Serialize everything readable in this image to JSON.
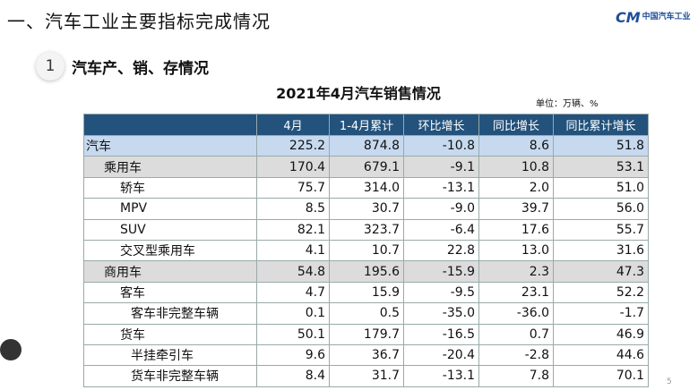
{
  "header": {
    "title": "一、汽车工业主要指标完成情况",
    "logo_mark": "CM",
    "logo_text": "中国汽车工业"
  },
  "section": {
    "number": "1",
    "title": "汽车产、销、存情况"
  },
  "table": {
    "title": "2021年4月汽车销售情况",
    "unit": "单位：万辆、%",
    "columns": [
      "4月",
      "1-4月累计",
      "环比增长",
      "同比增长",
      "同比累计增长"
    ],
    "rows": [
      {
        "label": "汽车",
        "cells": [
          "225.2",
          "874.8",
          "-10.8",
          "8.6",
          "51.8"
        ]
      },
      {
        "label": "乘用车",
        "cells": [
          "170.4",
          "679.1",
          "-9.1",
          "10.8",
          "53.1"
        ]
      },
      {
        "label": "轿车",
        "cells": [
          "75.7",
          "314.0",
          "-13.1",
          "2.0",
          "51.0"
        ]
      },
      {
        "label": "MPV",
        "cells": [
          "8.5",
          "30.7",
          "-9.0",
          "39.7",
          "56.0"
        ]
      },
      {
        "label": "SUV",
        "cells": [
          "82.1",
          "323.7",
          "-6.4",
          "17.6",
          "55.7"
        ]
      },
      {
        "label": "交叉型乘用车",
        "cells": [
          "4.1",
          "10.7",
          "22.8",
          "13.0",
          "31.6"
        ]
      },
      {
        "label": "商用车",
        "cells": [
          "54.8",
          "195.6",
          "-15.9",
          "2.3",
          "47.3"
        ]
      },
      {
        "label": "客车",
        "cells": [
          "4.7",
          "15.9",
          "-9.5",
          "23.1",
          "52.2"
        ]
      },
      {
        "label": "客车非完整车辆",
        "cells": [
          "0.1",
          "0.5",
          "-35.0",
          "-36.0",
          "-1.7"
        ]
      },
      {
        "label": "货车",
        "cells": [
          "50.1",
          "179.7",
          "-16.5",
          "0.7",
          "46.9"
        ]
      },
      {
        "label": "半挂牵引车",
        "cells": [
          "9.6",
          "36.7",
          "-20.4",
          "-2.8",
          "44.6"
        ]
      },
      {
        "label": "货车非完整车辆",
        "cells": [
          "8.4",
          "31.7",
          "-13.1",
          "7.8",
          "70.1"
        ]
      }
    ]
  },
  "footer": {
    "page": "5"
  }
}
